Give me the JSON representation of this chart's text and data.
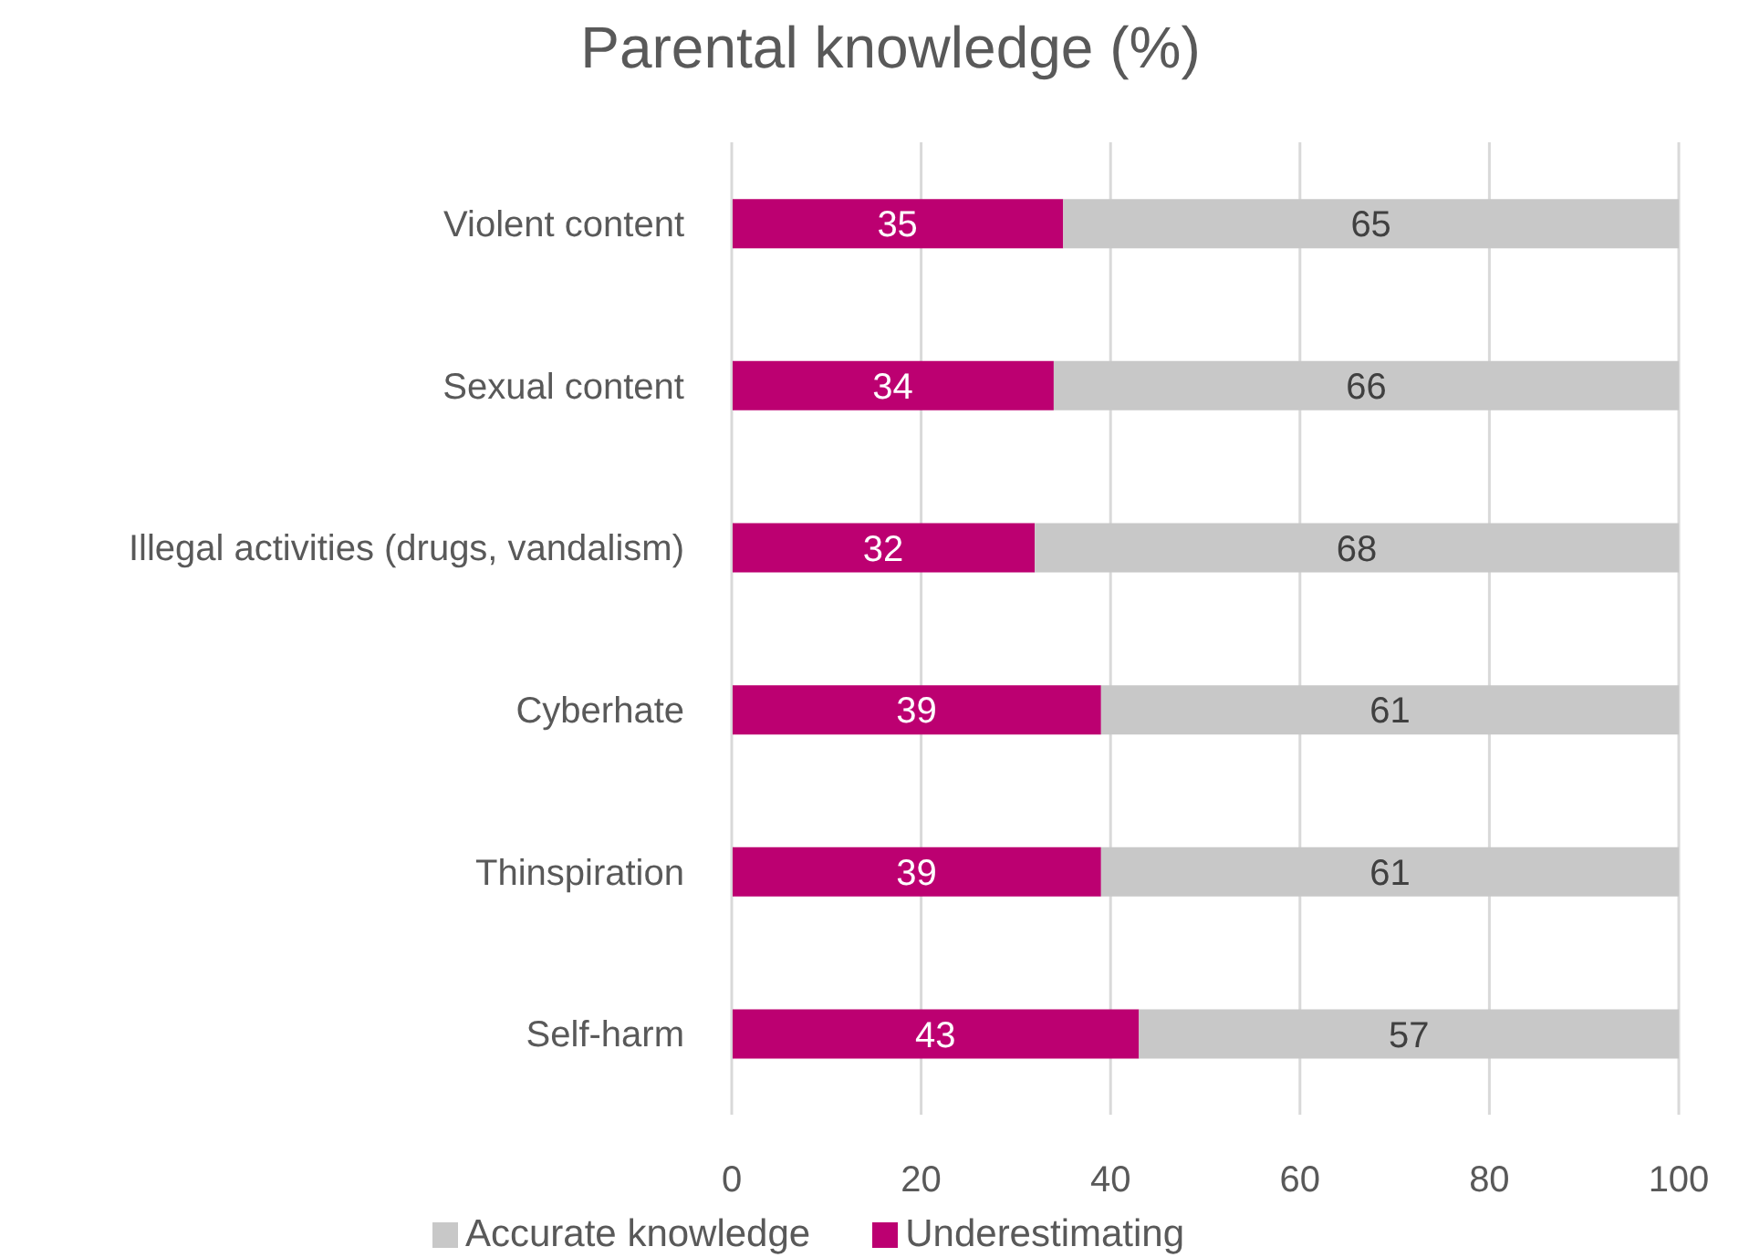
{
  "chart_data": {
    "type": "bar",
    "orientation": "horizontal",
    "stacked": true,
    "title": "Parental knowledge (%)",
    "categories": [
      "Violent content",
      "Sexual content",
      "Illegal activities (drugs, vandalism)",
      "Cyberhate",
      "Thinspiration",
      "Self-harm"
    ],
    "series": [
      {
        "name": "Underestimating",
        "color": "#bc0071",
        "values": [
          35,
          34,
          32,
          39,
          39,
          43
        ]
      },
      {
        "name": "Accurate knowledge",
        "color": "#c8c8c8",
        "values": [
          65,
          66,
          68,
          61,
          61,
          57
        ]
      }
    ],
    "xlim": [
      0,
      100
    ],
    "xticks": [
      0,
      20,
      40,
      60,
      80,
      100
    ],
    "grid": "x",
    "legend": "bottom",
    "data_labels": true
  }
}
